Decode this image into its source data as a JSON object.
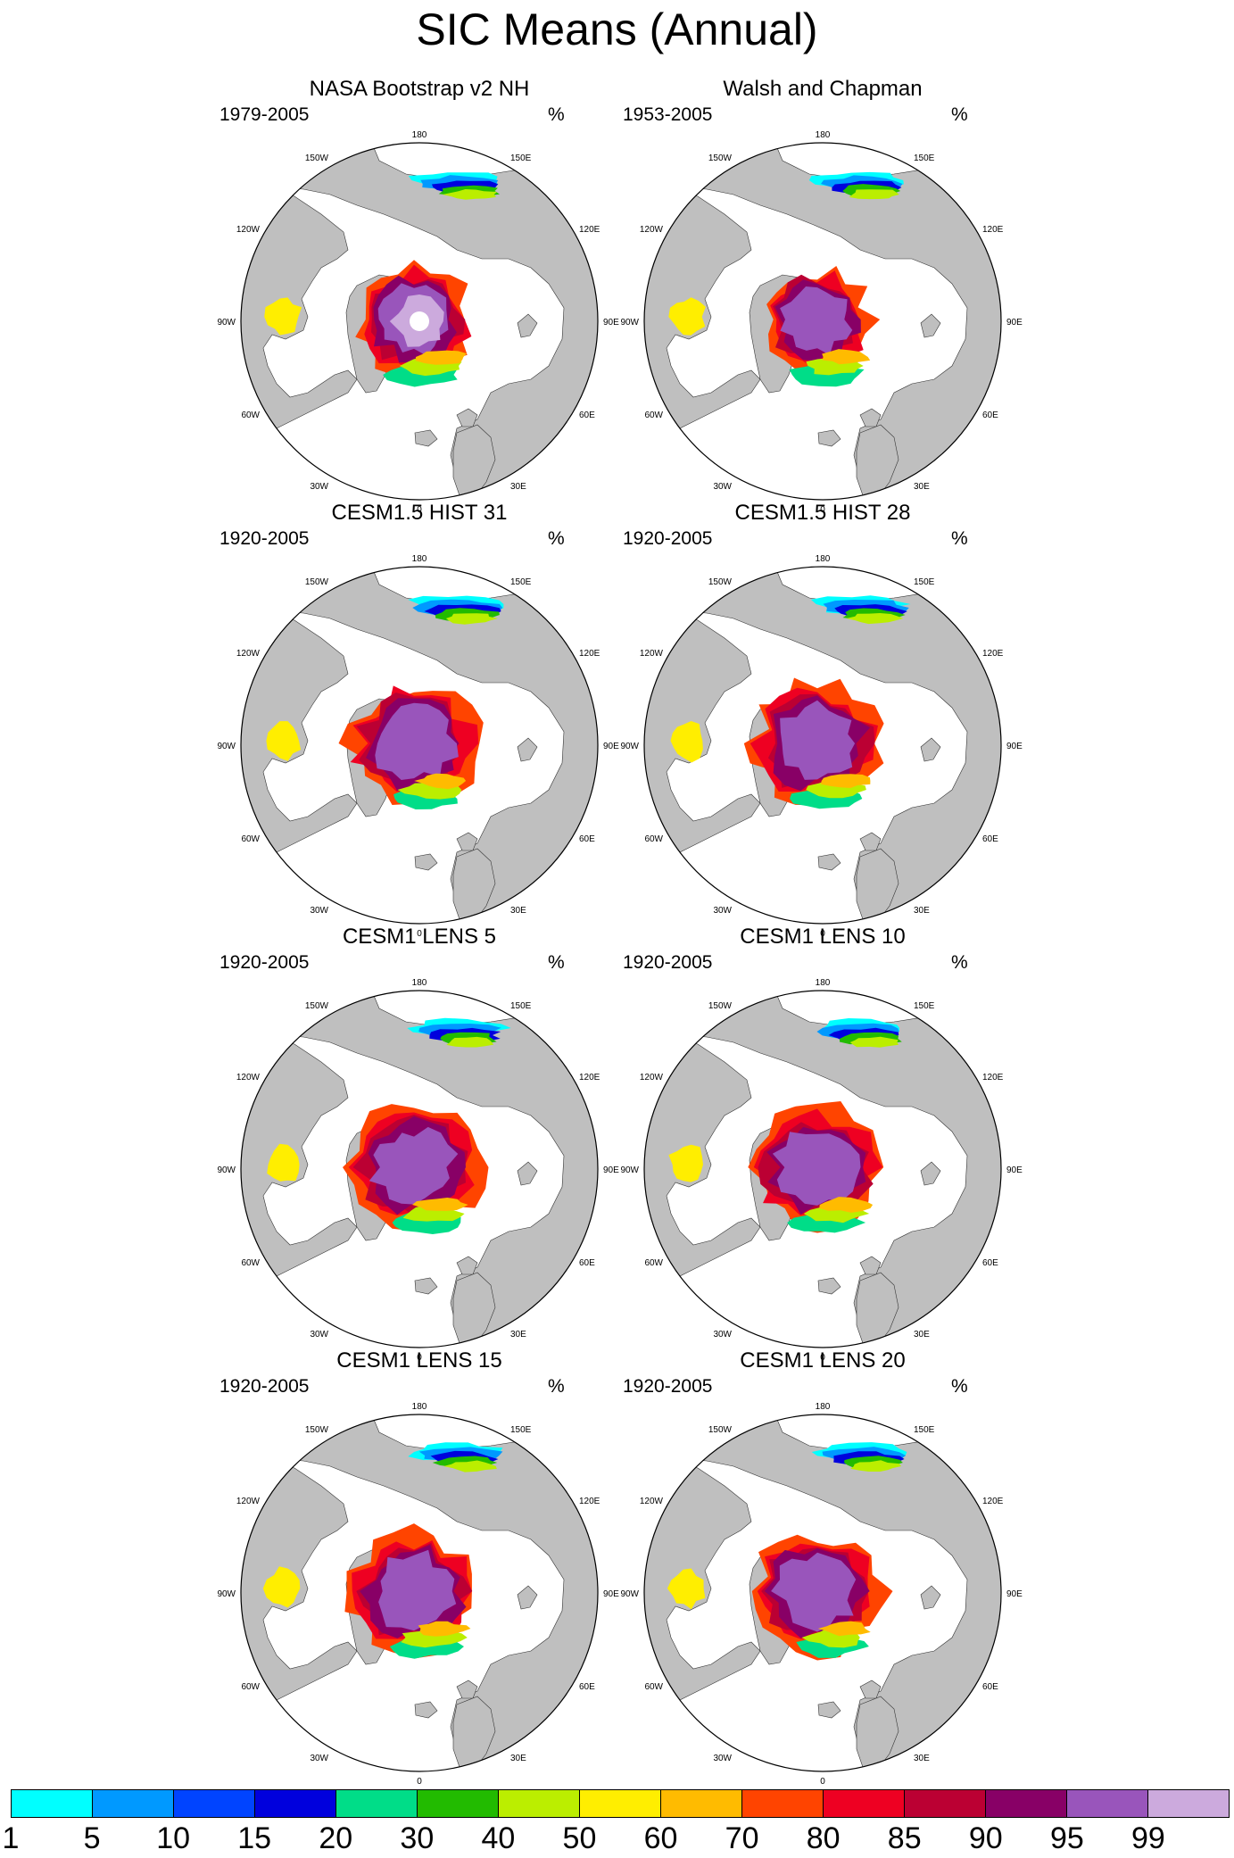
{
  "title": "SIC Means (Annual)",
  "unit": "%",
  "map_labels": {
    "top": "180",
    "bottom": "0",
    "left": "90W",
    "right": "90E",
    "ul": "150W",
    "ur": "150E",
    "lu": "120W",
    "ru": "120E",
    "ll": "60W",
    "rl": "60E",
    "bl": "30W",
    "br": "30E"
  },
  "panels": [
    {
      "title": "NASA Bootstrap v2 NH",
      "period": "1979-2005",
      "pole_hole": true,
      "coverage": 0.9
    },
    {
      "title": "Walsh and Chapman",
      "period": "1953-2005",
      "pole_hole": false,
      "coverage": 0.85
    },
    {
      "title": "CESM1.5 HIST 31",
      "period": "1920-2005",
      "pole_hole": false,
      "coverage": 1.0
    },
    {
      "title": "CESM1.5 HIST 28",
      "period": "1920-2005",
      "pole_hole": false,
      "coverage": 1.0
    },
    {
      "title": "CESM1 LENS 5",
      "period": "1920-2005",
      "pole_hole": false,
      "coverage": 1.0
    },
    {
      "title": "CESM1 LENS 10",
      "period": "1920-2005",
      "pole_hole": false,
      "coverage": 1.0
    },
    {
      "title": "CESM1 LENS 15",
      "period": "1920-2005",
      "pole_hole": false,
      "coverage": 1.0
    },
    {
      "title": "CESM1 LENS 20",
      "period": "1920-2005",
      "pole_hole": false,
      "coverage": 1.0
    }
  ],
  "colorbar": {
    "labels": [
      "1",
      "5",
      "10",
      "15",
      "20",
      "30",
      "40",
      "50",
      "60",
      "70",
      "80",
      "85",
      "90",
      "95",
      "99"
    ],
    "colors": [
      "#00ffff",
      "#0099ff",
      "#0044ff",
      "#0000dd",
      "#00dd88",
      "#22bb00",
      "#bbee00",
      "#ffee00",
      "#ffbb00",
      "#ff4400",
      "#ee0022",
      "#bb0033",
      "#880066",
      "#9955bb",
      "#ccaadd"
    ]
  },
  "colors": {
    "land": "#bfbfbf",
    "ocean": "#ffffff",
    "pole_hole": "#ffffff"
  }
}
